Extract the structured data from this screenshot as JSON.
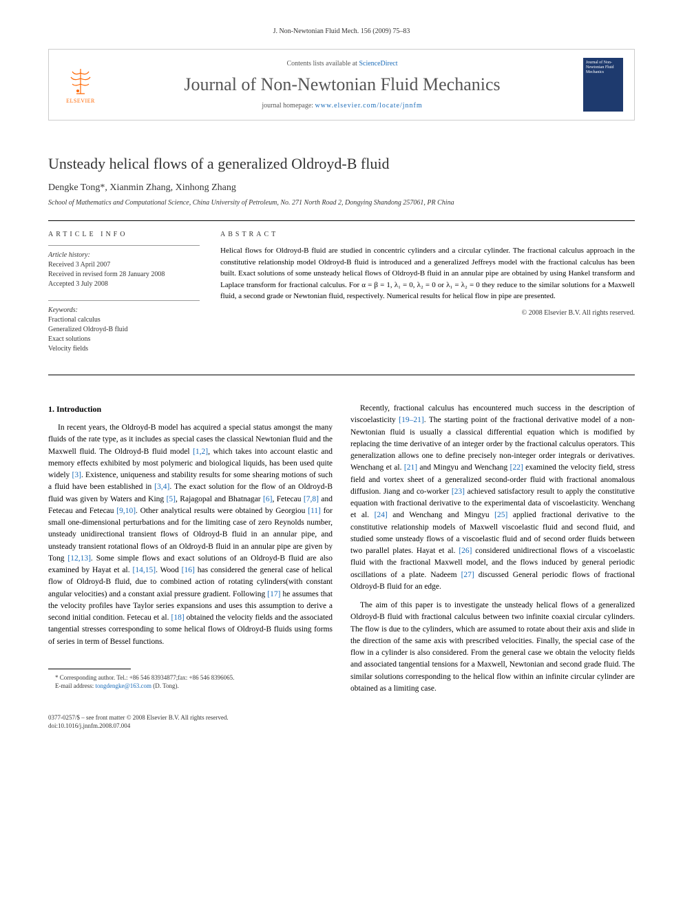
{
  "journal_ref": "J. Non-Newtonian Fluid Mech. 156 (2009) 75–83",
  "header": {
    "contents_prefix": "Contents lists available at ",
    "contents_link": "ScienceDirect",
    "journal_title": "Journal of Non-Newtonian Fluid Mechanics",
    "homepage_prefix": "journal homepage: ",
    "homepage_url": "www.elsevier.com/locate/jnnfm",
    "publisher": "ELSEVIER",
    "cover_text": "Journal of Non-Newtonian Fluid Mechanics"
  },
  "article": {
    "title": "Unsteady helical flows of a generalized Oldroyd-B fluid",
    "authors": "Dengke Tong*, Xianmin Zhang, Xinhong Zhang",
    "affiliation": "School of Mathematics and Computational Science, China University of Petroleum, No. 271 North Road 2, Dongying Shandong 257061, PR China"
  },
  "info": {
    "heading": "ARTICLE INFO",
    "history_label": "Article history:",
    "received": "Received 3 April 2007",
    "revised": "Received in revised form 28 January 2008",
    "accepted": "Accepted 3 July 2008",
    "keywords_label": "Keywords:",
    "kw1": "Fractional calculus",
    "kw2": "Generalized Oldroyd-B fluid",
    "kw3": "Exact solutions",
    "kw4": "Velocity fields"
  },
  "abstract": {
    "heading": "ABSTRACT",
    "text": "Helical flows for Oldroyd-B fluid are studied in concentric cylinders and a circular cylinder. The fractional calculus approach in the constitutive relationship model Oldroyd-B fluid is introduced and a generalized Jeffreys model with the fractional calculus has been built. Exact solutions of some unsteady helical flows of Oldroyd-B fluid in an annular pipe are obtained by using Hankel transform and Laplace transform for fractional calculus. For α = β = 1, λ₁ = 0, λ₂ = 0 or λ₁ = λ₂ = 0 they reduce to the similar solutions for a Maxwell fluid, a second grade or Newtonian fluid, respectively. Numerical results for helical flow in pipe are presented.",
    "copyright": "© 2008 Elsevier B.V. All rights reserved."
  },
  "body": {
    "section1_heading": "1. Introduction",
    "col1_p1": "In recent years, the Oldroyd-B model has acquired a special status amongst the many fluids of the rate type, as it includes as special cases the classical Newtonian fluid and the Maxwell fluid. The Oldroyd-B fluid model [1,2], which takes into account elastic and memory effects exhibited by most polymeric and biological liquids, has been used quite widely [3]. Existence, uniqueness and stability results for some shearing motions of such a fluid have been established in [3,4]. The exact solution for the flow of an Oldroyd-B fluid was given by Waters and King [5], Rajagopal and Bhatnagar [6], Fetecau [7,8] and Fetecau and Fetecau [9,10]. Other analytical results were obtained by Georgiou [11] for small one-dimensional perturbations and for the limiting case of zero Reynolds number, unsteady unidirectional transient flows of Oldroyd-B fluid in an annular pipe, and unsteady transient rotational flows of an Oldroyd-B fluid in an annular pipe are given by Tong [12,13]. Some simple flows and exact solutions of an Oldroyd-B fluid are also examined by Hayat et al. [14,15]. Wood [16] has considered the general case of helical flow of Oldroyd-B fluid, due to combined action of rotating cylinders(with constant angular velocities) and a constant axial pressure gradient. Following [17] he assumes that the velocity profiles have Taylor series expansions and uses this assumption to derive a second initial condition. Fetecau et al. [18] obtained the velocity fields and the associated tangential stresses corresponding to some helical flows of Oldroyd-B fluids using forms of series in term of Bessel functions.",
    "col2_p1": "Recently, fractional calculus has encountered much success in the description of viscoelasticity [19–21]. The starting point of the fractional derivative model of a non-Newtonian fluid is usually a classical differential equation which is modified by replacing the time derivative of an integer order by the fractional calculus operators. This generalization allows one to define precisely non-integer order integrals or derivatives. Wenchang et al. [21] and Mingyu and Wenchang [22] examined the velocity field, stress field and vortex sheet of a generalized second-order fluid with fractional anomalous diffusion. Jiang and co-worker [23] achieved satisfactory result to apply the constitutive equation with fractional derivative to the experimental data of viscoelasticity. Wenchang et al. [24] and Wenchang and Mingyu [25] applied fractional derivative to the constitutive relationship models of Maxwell viscoelastic fluid and second fluid, and studied some unsteady flows of a viscoelastic fluid and of second order fluids between two parallel plates. Hayat et al. [26] considered unidirectional flows of a viscoelastic fluid with the fractional Maxwell model, and the flows induced by general periodic oscillations of a plate. Nadeem [27] discussed General periodic flows of fractional Oldroyd-B fluid for an edge.",
    "col2_p2": "The aim of this paper is to investigate the unsteady helical flows of a generalized Oldroyd-B fluid with fractional calculus between two infinite coaxial circular cylinders. The flow is due to the cylinders, which are assumed to rotate about their axis and slide in the direction of the same axis with prescribed velocities. Finally, the special case of the flow in a cylinder is also considered. From the general case we obtain the velocity fields and associated tangential tensions for a Maxwell, Newtonian and second grade fluid. The similar solutions corresponding to the helical flow within an infinite circular cylinder are obtained as a limiting case."
  },
  "footnote": {
    "corr": "* Corresponding author. Tel.: +86 546 83934877;fax: +86 546 8396065.",
    "email_label": "E-mail address: ",
    "email": "tongdengke@163.com",
    "email_suffix": " (D. Tong)."
  },
  "bottom": {
    "issn": "0377-0257/$ – see front matter © 2008 Elsevier B.V. All rights reserved.",
    "doi": "doi:10.1016/j.jnnfm.2008.07.004"
  }
}
